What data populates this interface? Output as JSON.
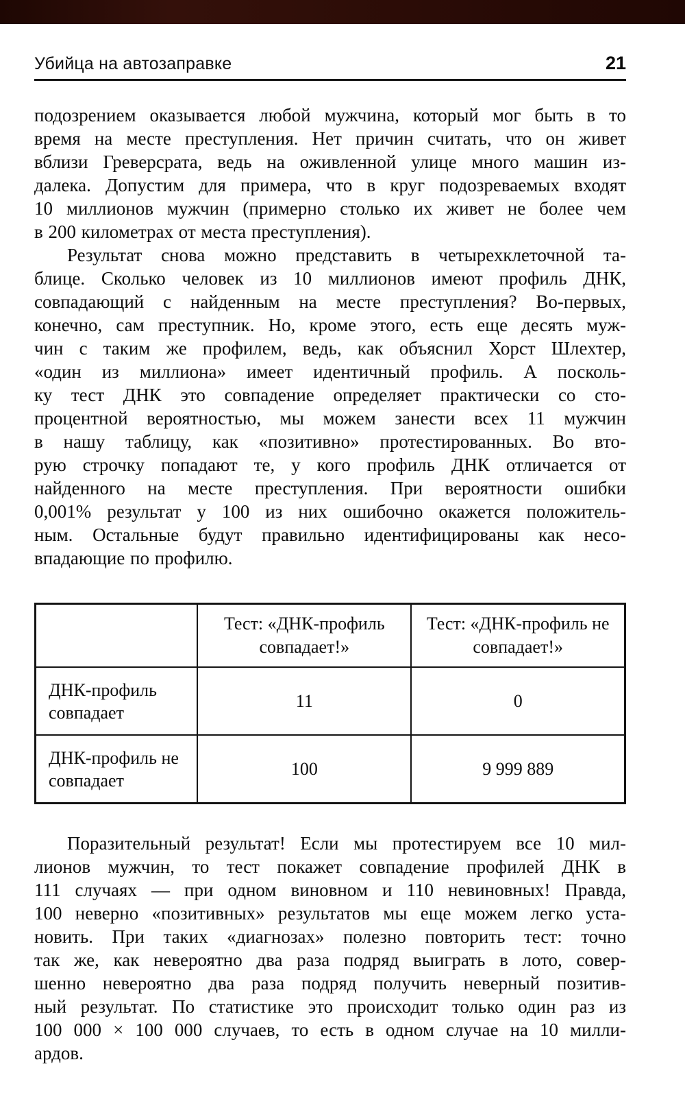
{
  "scan": {
    "top_edge_color": "#2b0c06"
  },
  "header": {
    "title": "Убийца на автозаправке",
    "page_number": "21"
  },
  "paragraphs": [
    {
      "indent": false,
      "lines": [
        "подозрением оказывается любой мужчина, который мог быть в то",
        "время на месте преступления. Нет причин считать, что он живет",
        "вблизи Греверсрата, ведь на оживленной улице много машин из-",
        "далека. Допустим для примера, что в круг подозреваемых входят",
        "10 миллионов мужчин (примерно столько их живет не более чем",
        "в 200 километрах от места преступления)."
      ]
    },
    {
      "indent": true,
      "lines": [
        "Результат снова можно представить в четырехклеточной та-",
        "блице. Сколько человек из 10 миллионов имеют профиль ДНК,",
        "совпадающий с найденным на месте преступления? Во-первых,",
        "конечно, сам преступник. Но, кроме этого, есть еще десять муж-",
        "чин с таким же профилем, ведь, как объяснил Хорст Шлехтер,",
        "«один из миллиона» имеет идентичный профиль. А посколь-",
        "ку тест ДНК это совпадение определяет практически со сто-",
        "процентной вероятностью, мы можем занести всех 11 мужчин",
        "в нашу таблицу, как «позитивно» протестированных. Во вто-",
        "рую строчку попадают те, у кого профиль ДНК отличается от",
        "найденного на месте преступления. При вероятности ошибки",
        "0,001% результат у 100 из них ошибочно окажется положитель-",
        "ным. Остальные будут правильно идентифицированы как несо-",
        "впадающие по профилю."
      ]
    },
    {
      "indent": true,
      "lines": [
        "Поразительный результат! Если мы протестируем все 10 мил-",
        "лионов мужчин, то тест покажет совпадение профилей ДНК в",
        "111 случаях — при одном виновном и 110 невиновных! Правда,",
        "100 неверно «позитивных» результатов мы еще можем легко уста-",
        "новить. При таких «диагнозах» полезно повторить тест: точно",
        "так же, как невероятно два раза подряд выиграть в лото, совер-",
        "шенно невероятно два раза подряд получить неверный позитив-",
        "ный результат. По статистике это происходит только один раз из",
        "100 000 × 100 000 случаев, то есть в одном случае на 10 милли-",
        "ардов."
      ]
    }
  ],
  "table": {
    "corner": "",
    "col_headers": [
      "Тест: «ДНК-профиль совпадает!»",
      "Тест: «ДНК-профиль не совпадает!»"
    ],
    "rows": [
      {
        "label": "ДНК-профиль совпадает",
        "values": [
          "11",
          "0"
        ]
      },
      {
        "label": "ДНК-профиль не совпадает",
        "values": [
          "100",
          "9 999 889"
        ]
      }
    ]
  }
}
